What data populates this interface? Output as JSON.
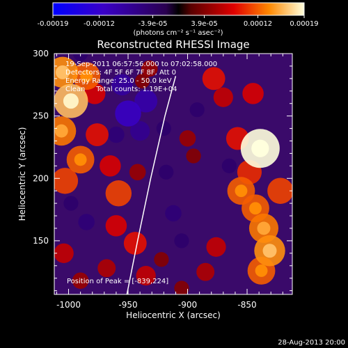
{
  "chart_data": {
    "type": "heatmap",
    "title": "Reconstructed RHESSI Image",
    "xlabel": "Heliocentric X (arcsec)",
    "ylabel": "Heliocentric Y (arcsec)",
    "xlim": [
      -1012,
      -812
    ],
    "ylim": [
      107,
      300
    ],
    "x_ticks": [
      -1000,
      -950,
      -900,
      -850
    ],
    "x_tick_labels": [
      "-1000",
      "-950",
      "-900",
      "-850"
    ],
    "y_ticks": [
      150,
      200,
      250,
      300
    ],
    "y_tick_labels": [
      "150",
      "200",
      "250",
      "300"
    ],
    "colorbar": {
      "range": [
        -0.00019,
        0.00019
      ],
      "ticks": [
        -0.00019,
        -0.00012,
        -3.9e-05,
        3.9e-05,
        0.00012,
        0.00019
      ],
      "tick_labels": [
        "-0.00019",
        "-0.00012",
        "-3.9e-05",
        "3.9e-05",
        "0.00012",
        "0.00019"
      ],
      "unit_label": "(photons cm⁻² s⁻¹ asec⁻²)"
    },
    "annotations": [
      "19-Sep-2011 06:57:56.000 to 07:02:58.000",
      "Detectors: 4F 5F 6F 7F 8F, Att 0",
      "Energy Range: 25.0 - 50.0 keV",
      "Clean     Total counts: 1.19E+04"
    ],
    "peak_label": "Position of Peak = [-839,224]",
    "peak": {
      "x": -839,
      "y": 224
    },
    "limb_points": [
      [
        -951,
        107
      ],
      [
        -942,
        150
      ],
      [
        -931,
        200
      ],
      [
        -919,
        250
      ],
      [
        -910,
        282
      ]
    ],
    "blobs": [
      {
        "x": -1005,
        "y": 285,
        "v": 0.00014
      },
      {
        "x": -998,
        "y": 262,
        "v": 0.00016
      },
      {
        "x": -1006,
        "y": 238,
        "v": 0.00013
      },
      {
        "x": -990,
        "y": 215,
        "v": 0.00012
      },
      {
        "x": -1003,
        "y": 198,
        "v": 0.00011
      },
      {
        "x": -985,
        "y": 282,
        "v": 0.00012
      },
      {
        "x": -978,
        "y": 268,
        "v": 8e-05
      },
      {
        "x": -976,
        "y": 235,
        "v": 9e-05
      },
      {
        "x": -965,
        "y": 210,
        "v": 8e-05
      },
      {
        "x": -958,
        "y": 188,
        "v": 0.00011
      },
      {
        "x": -960,
        "y": 162,
        "v": 8e-05
      },
      {
        "x": -944,
        "y": 148,
        "v": 9e-05
      },
      {
        "x": -968,
        "y": 128,
        "v": 6e-05
      },
      {
        "x": -935,
        "y": 122,
        "v": 7e-05
      },
      {
        "x": -1004,
        "y": 140,
        "v": 7e-05
      },
      {
        "x": -990,
        "y": 118,
        "v": 5e-05
      },
      {
        "x": -942,
        "y": 205,
        "v": 5e-05
      },
      {
        "x": -938,
        "y": 278,
        "v": 4e-05
      },
      {
        "x": -932,
        "y": 288,
        "v": 5e-05
      },
      {
        "x": -922,
        "y": 135,
        "v": 4e-05
      },
      {
        "x": -895,
        "y": 218,
        "v": 4e-05
      },
      {
        "x": -900,
        "y": 232,
        "v": 5e-05
      },
      {
        "x": -878,
        "y": 280,
        "v": 9e-05
      },
      {
        "x": -870,
        "y": 265,
        "v": 7e-05
      },
      {
        "x": -876,
        "y": 145,
        "v": 7e-05
      },
      {
        "x": -858,
        "y": 232,
        "v": 9e-05
      },
      {
        "x": -855,
        "y": 190,
        "v": 0.00012
      },
      {
        "x": -848,
        "y": 205,
        "v": 0.0001
      },
      {
        "x": -843,
        "y": 176,
        "v": 0.00012
      },
      {
        "x": -836,
        "y": 160,
        "v": 0.00013
      },
      {
        "x": -831,
        "y": 142,
        "v": 0.00014
      },
      {
        "x": -838,
        "y": 126,
        "v": 0.00012
      },
      {
        "x": -822,
        "y": 190,
        "v": 0.00011
      },
      {
        "x": -845,
        "y": 268,
        "v": 8e-05
      },
      {
        "x": -885,
        "y": 125,
        "v": 6e-05
      },
      {
        "x": -905,
        "y": 112,
        "v": 4e-05
      },
      {
        "x": -839,
        "y": 224,
        "v": 0.00019
      },
      {
        "x": -950,
        "y": 252,
        "v": -0.00011
      },
      {
        "x": -935,
        "y": 262,
        "v": -9e-05
      },
      {
        "x": -955,
        "y": 275,
        "v": -8e-05
      },
      {
        "x": -940,
        "y": 238,
        "v": -7e-05
      },
      {
        "x": -960,
        "y": 235,
        "v": -5e-05
      },
      {
        "x": -912,
        "y": 172,
        "v": -5e-05
      },
      {
        "x": -918,
        "y": 205,
        "v": -4e-05
      },
      {
        "x": -892,
        "y": 255,
        "v": -4e-05
      },
      {
        "x": -985,
        "y": 165,
        "v": -5e-05
      },
      {
        "x": -998,
        "y": 180,
        "v": -4e-05
      },
      {
        "x": -990,
        "y": 300,
        "v": -4e-05
      },
      {
        "x": -865,
        "y": 210,
        "v": -4e-05
      },
      {
        "x": -905,
        "y": 150,
        "v": -4e-05
      },
      {
        "x": -920,
        "y": 240,
        "v": -4e-05
      }
    ]
  },
  "footer_date": "28-Aug-2013 20:00"
}
